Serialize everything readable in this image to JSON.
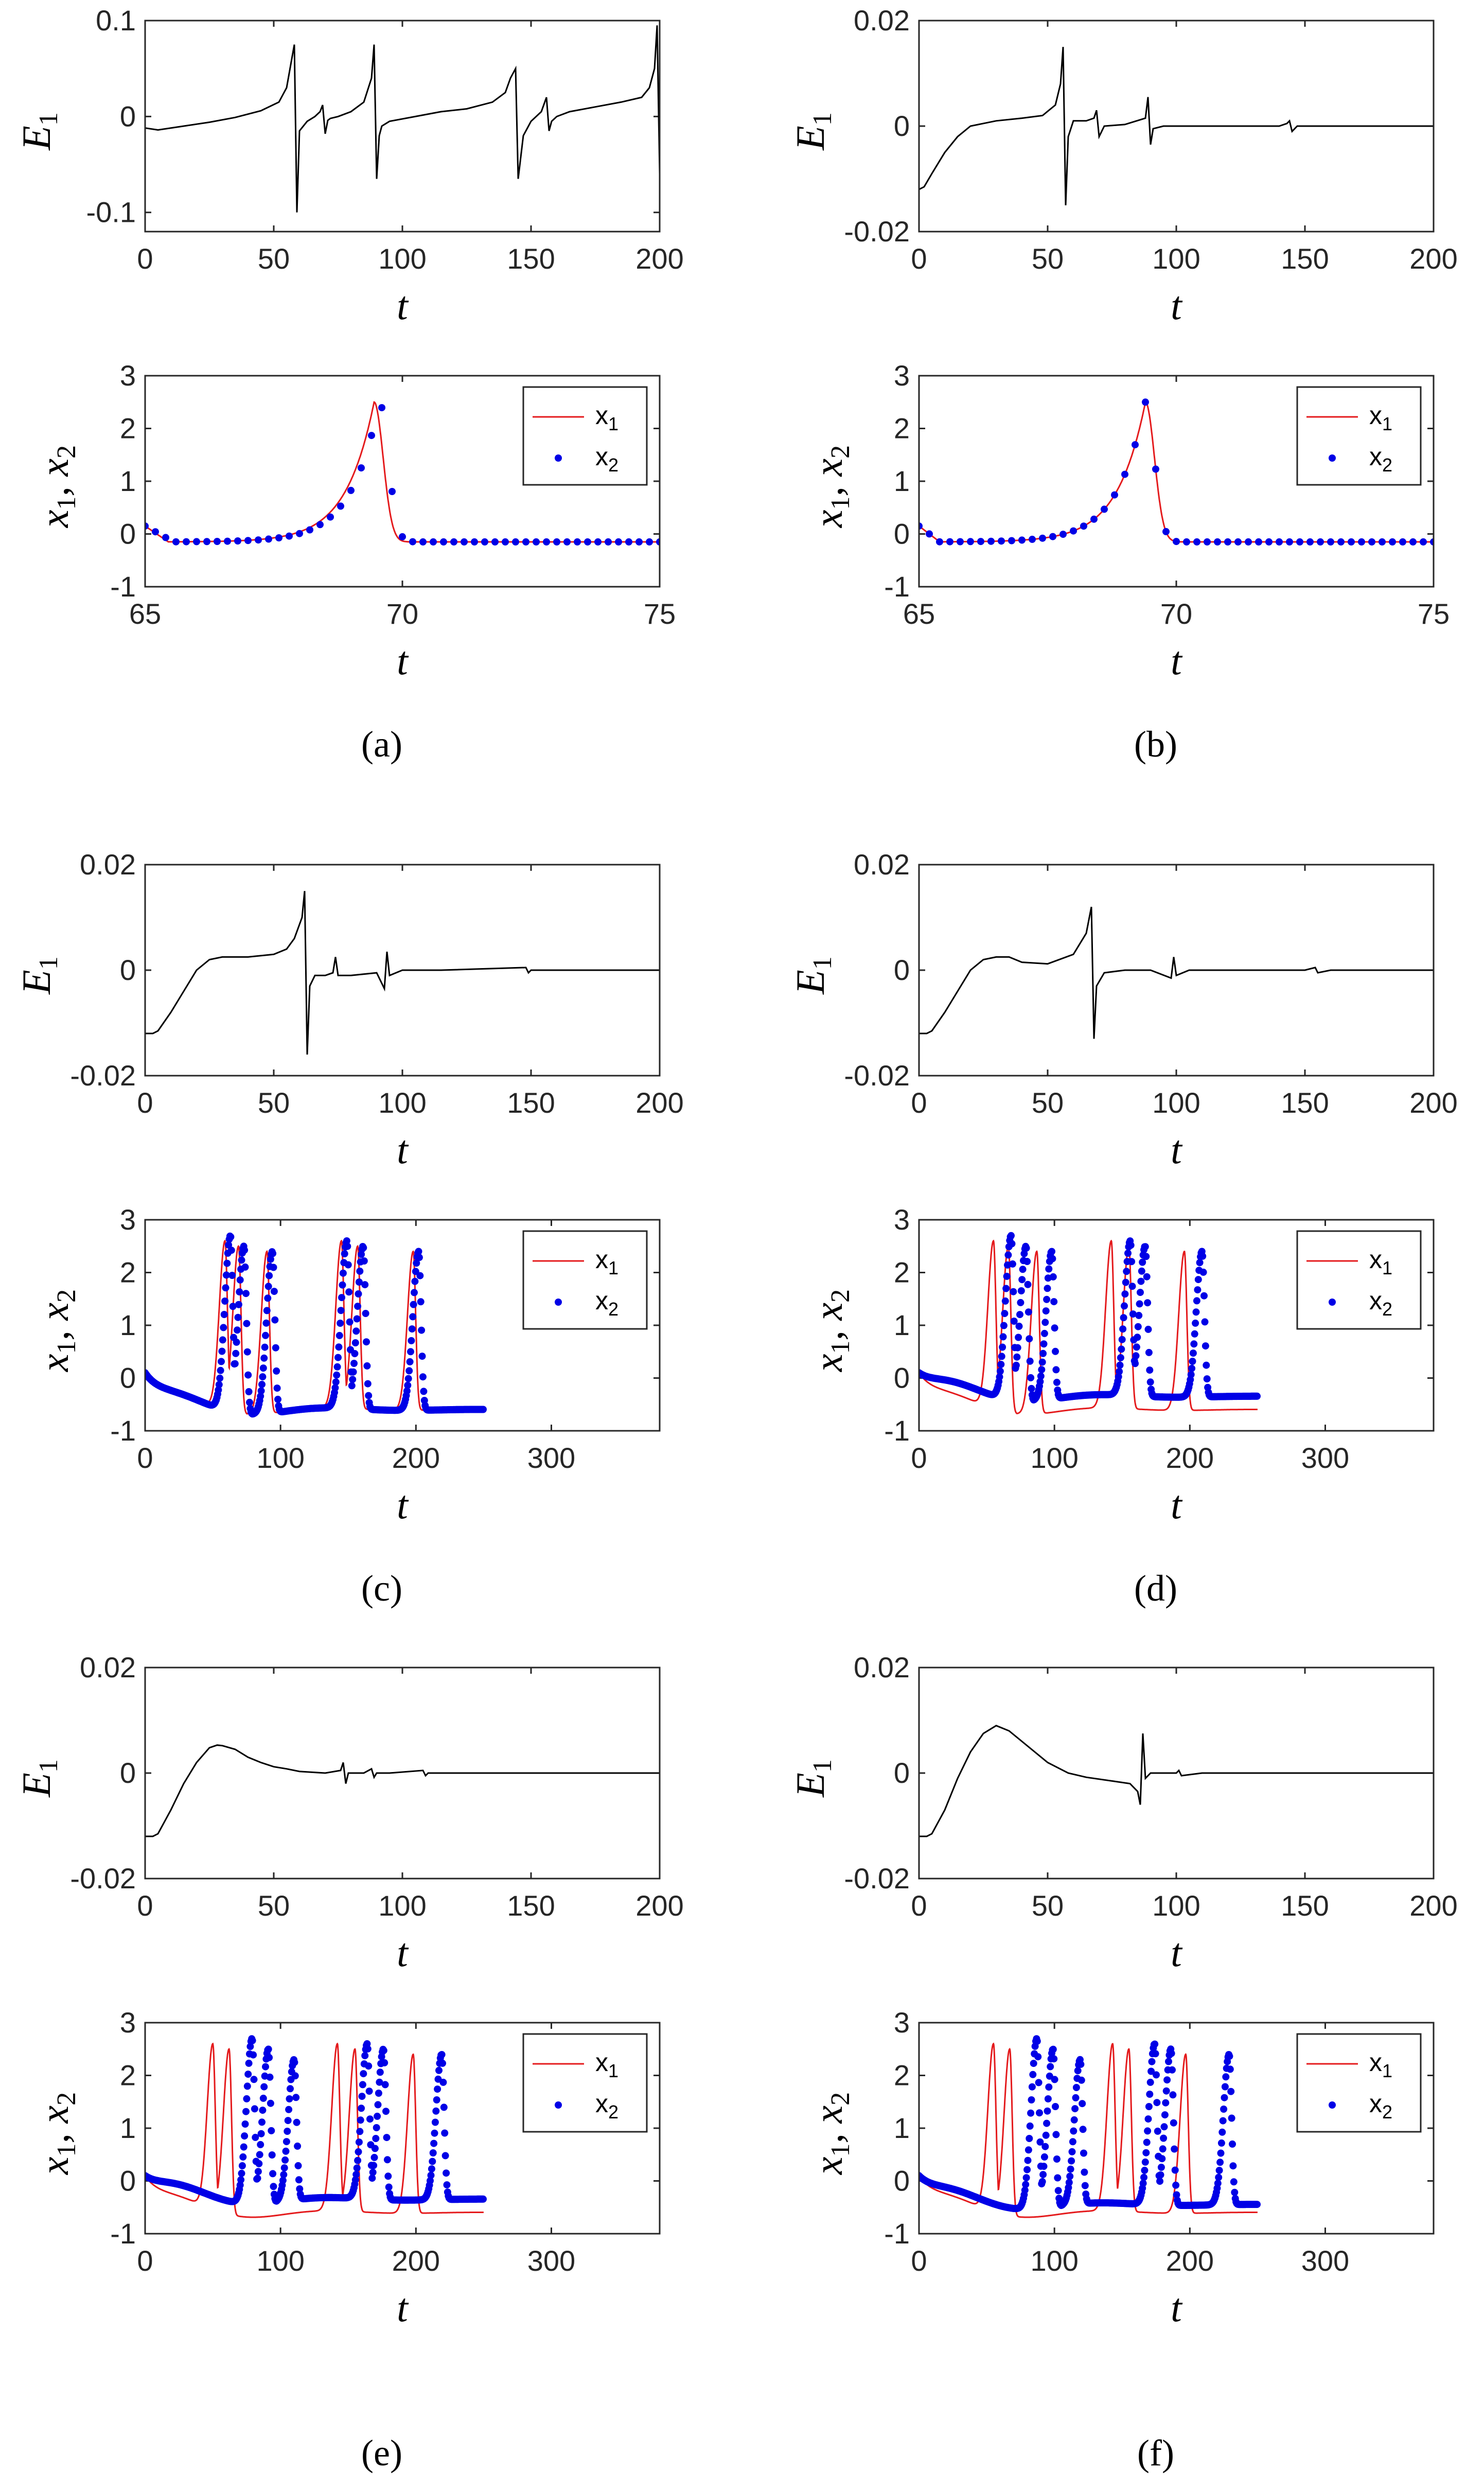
{
  "figure": {
    "panels": [
      {
        "id": "a",
        "label": "(a)"
      },
      {
        "id": "b",
        "label": "(b)"
      },
      {
        "id": "c",
        "label": "(c)"
      },
      {
        "id": "d",
        "label": "(d)"
      },
      {
        "id": "e",
        "label": "(e)"
      },
      {
        "id": "f",
        "label": "(f)"
      }
    ]
  },
  "colors": {
    "x1": "#e41a1c",
    "x2": "#0000e6",
    "error": "#000000"
  },
  "chart_data": [
    {
      "panel": "a",
      "kind": "error",
      "type": "line",
      "ylabel": "E1",
      "xlabel": "t",
      "xlim": [
        0,
        200
      ],
      "ylim": [
        -0.12,
        0.1
      ],
      "xticks": [
        "0",
        "50",
        "100",
        "150",
        "200"
      ],
      "xtick_values": [
        0,
        50,
        100,
        150,
        200
      ],
      "yticks": [
        "0.1",
        "0",
        "-0.1"
      ],
      "ytick_values": [
        0.1,
        0,
        -0.1
      ],
      "series": [
        {
          "name": "E1",
          "x": [
            0,
            5,
            15,
            25,
            35,
            45,
            52,
            55,
            57,
            58,
            59,
            60,
            63,
            66,
            68,
            69,
            70,
            71,
            72,
            75,
            80,
            85,
            88,
            89,
            90,
            91,
            92,
            95,
            105,
            115,
            125,
            135,
            140,
            142,
            144,
            145,
            147,
            150,
            154,
            156,
            157,
            158,
            160,
            165,
            175,
            185,
            193,
            196,
            198,
            199,
            200
          ],
          "y": [
            -0.012,
            -0.014,
            -0.01,
            -0.006,
            -0.001,
            0.006,
            0.015,
            0.03,
            0.06,
            0.075,
            -0.1,
            -0.015,
            -0.005,
            0,
            0.005,
            0.012,
            -0.018,
            -0.004,
            -0.002,
            0,
            0.005,
            0.015,
            0.04,
            0.075,
            -0.065,
            -0.02,
            -0.01,
            -0.005,
            0,
            0.005,
            0.008,
            0.015,
            0.025,
            0.04,
            0.05,
            -0.065,
            -0.02,
            -0.005,
            0.005,
            0.02,
            -0.015,
            -0.005,
            0,
            0.005,
            0.01,
            0.015,
            0.02,
            0.03,
            0.05,
            0.095,
            -0.06
          ]
        }
      ]
    },
    {
      "panel": "a",
      "kind": "state",
      "type": "line+scatter",
      "ylabel": "x1, x2",
      "xlabel": "t",
      "xlim": [
        65,
        75
      ],
      "ylim": [
        -1,
        3
      ],
      "xticks": [
        "65",
        "70",
        "75"
      ],
      "xtick_values": [
        65,
        70,
        75
      ],
      "yticks": [
        "3",
        "2",
        "1",
        "0",
        "-1"
      ],
      "ytick_values": [
        3,
        2,
        1,
        0,
        -1
      ],
      "legend": [
        "x1",
        "x2"
      ],
      "series": [
        {
          "name": "x1",
          "style": "line",
          "spikes": [
            69.45
          ],
          "width": 0.5,
          "peak": 2.5,
          "baseline": -0.15,
          "start": 0.15
        },
        {
          "name": "x2",
          "style": "dots",
          "spikes": [
            69.55
          ],
          "width": 0.5,
          "peak": 2.5,
          "baseline": -0.15,
          "start": 0.15
        }
      ]
    },
    {
      "panel": "b",
      "kind": "error",
      "type": "line",
      "ylabel": "E1",
      "xlabel": "t",
      "xlim": [
        0,
        200
      ],
      "ylim": [
        -0.02,
        0.02
      ],
      "xticks": [
        "0",
        "50",
        "100",
        "150",
        "200"
      ],
      "xtick_values": [
        0,
        50,
        100,
        150,
        200
      ],
      "yticks": [
        "0.02",
        "0",
        "-0.02"
      ],
      "ytick_values": [
        0.02,
        0,
        -0.02
      ],
      "series": [
        {
          "name": "E1",
          "x": [
            0,
            2,
            5,
            10,
            15,
            20,
            30,
            40,
            48,
            53,
            55,
            56,
            57,
            58,
            60,
            65,
            68,
            69,
            70,
            72,
            80,
            88,
            89,
            90,
            91,
            95,
            110,
            140,
            143,
            144,
            145,
            147,
            160,
            180,
            200
          ],
          "y": [
            -0.012,
            -0.0115,
            -0.009,
            -0.005,
            -0.002,
            0,
            0.001,
            0.0015,
            0.002,
            0.004,
            0.008,
            0.015,
            -0.015,
            -0.002,
            0.001,
            0.001,
            0.0015,
            0.003,
            -0.002,
            0,
            0.0003,
            0.0015,
            0.0055,
            -0.0035,
            -0.0005,
            0,
            0,
            0,
            0.0005,
            0.001,
            -0.001,
            0,
            0,
            0,
            0
          ]
        }
      ]
    },
    {
      "panel": "b",
      "kind": "state",
      "type": "line+scatter",
      "ylabel": "x1, x2",
      "xlabel": "t",
      "xlim": [
        65,
        75
      ],
      "ylim": [
        -1,
        3
      ],
      "xticks": [
        "65",
        "70",
        "75"
      ],
      "xtick_values": [
        65,
        70,
        75
      ],
      "yticks": [
        "3",
        "2",
        "1",
        "0",
        "-1"
      ],
      "ytick_values": [
        3,
        2,
        1,
        0,
        -1
      ],
      "legend": [
        "x1",
        "x2"
      ],
      "series": [
        {
          "name": "x1",
          "style": "line",
          "spikes": [
            69.4
          ],
          "width": 0.5,
          "peak": 2.5,
          "baseline": -0.15,
          "start": 0.15
        },
        {
          "name": "x2",
          "style": "dots",
          "spikes": [
            69.4
          ],
          "width": 0.5,
          "peak": 2.5,
          "baseline": -0.15,
          "start": 0.15
        }
      ]
    },
    {
      "panel": "c",
      "kind": "error",
      "type": "line",
      "ylabel": "E1",
      "xlabel": "t",
      "xlim": [
        0,
        200
      ],
      "ylim": [
        -0.02,
        0.02
      ],
      "xticks": [
        "0",
        "50",
        "100",
        "150",
        "200"
      ],
      "xtick_values": [
        0,
        50,
        100,
        150,
        200
      ],
      "yticks": [
        "0.02",
        "0",
        "-0.02"
      ],
      "ytick_values": [
        0.02,
        0,
        -0.02
      ],
      "series": [
        {
          "name": "E1",
          "x": [
            0,
            3,
            5,
            10,
            15,
            20,
            25,
            30,
            40,
            50,
            55,
            58,
            61,
            62,
            63,
            64,
            66,
            70,
            73,
            74,
            75,
            80,
            90,
            93,
            94,
            95,
            100,
            115,
            148,
            149,
            150,
            160,
            200
          ],
          "y": [
            -0.012,
            -0.012,
            -0.0115,
            -0.008,
            -0.004,
            0,
            0.002,
            0.0025,
            0.0025,
            0.003,
            0.004,
            0.006,
            0.01,
            0.015,
            -0.016,
            -0.003,
            -0.001,
            -0.001,
            -0.0005,
            0.0025,
            -0.001,
            -0.001,
            -0.0005,
            -0.0035,
            0.0035,
            -0.001,
            0,
            0,
            0.0005,
            -0.0005,
            0,
            0,
            0
          ]
        }
      ]
    },
    {
      "panel": "c",
      "kind": "state",
      "type": "line+scatter",
      "ylabel": "x1, x2",
      "xlabel": "t",
      "xlim": [
        0,
        380
      ],
      "ylim": [
        -1,
        3
      ],
      "xticks": [
        "0",
        "100",
        "200",
        "300"
      ],
      "xtick_values": [
        0,
        100,
        200,
        300
      ],
      "yticks": [
        "3",
        "2",
        "1",
        "0",
        "-1"
      ],
      "ytick_values": [
        3,
        2,
        1,
        0,
        -1
      ],
      "legend": [
        "x1",
        "x2"
      ],
      "series": [
        {
          "name": "x1",
          "style": "line",
          "t_end": 250,
          "spikes": [
            59,
            69,
            90,
            145,
            157,
            198
          ],
          "peaks": [
            2.6,
            2.5,
            2.4,
            2.6,
            2.5,
            2.4
          ],
          "width": 3,
          "baseline": -0.6,
          "start": 0.1
        },
        {
          "name": "x2",
          "style": "dots",
          "t_end": 250,
          "spikes": [
            63,
            73,
            94,
            149,
            161,
            202
          ],
          "peaks": [
            2.7,
            2.5,
            2.4,
            2.6,
            2.5,
            2.4
          ],
          "width": 3,
          "baseline": -0.6,
          "start": 0.1
        }
      ]
    },
    {
      "panel": "d",
      "kind": "error",
      "type": "line",
      "ylabel": "E1",
      "xlabel": "t",
      "xlim": [
        0,
        200
      ],
      "ylim": [
        -0.02,
        0.02
      ],
      "xticks": [
        "0",
        "50",
        "100",
        "150",
        "200"
      ],
      "xtick_values": [
        0,
        50,
        100,
        150,
        200
      ],
      "yticks": [
        "0.02",
        "0",
        "-0.02"
      ],
      "ytick_values": [
        0.02,
        0,
        -0.02
      ],
      "series": [
        {
          "name": "E1",
          "x": [
            0,
            3,
            5,
            10,
            15,
            20,
            25,
            30,
            35,
            40,
            50,
            60,
            65,
            67,
            68,
            69,
            72,
            80,
            90,
            98,
            99,
            100,
            105,
            150,
            154,
            155,
            160,
            200
          ],
          "y": [
            -0.012,
            -0.012,
            -0.0115,
            -0.008,
            -0.004,
            0,
            0.002,
            0.0025,
            0.0025,
            0.0015,
            0.0012,
            0.003,
            0.007,
            0.012,
            -0.013,
            -0.003,
            -0.0005,
            0,
            0,
            -0.0015,
            0.0025,
            -0.001,
            0,
            0,
            0.0005,
            -0.0005,
            0,
            0
          ]
        }
      ]
    },
    {
      "panel": "d",
      "kind": "state",
      "type": "line+scatter",
      "ylabel": "x1, x2",
      "xlabel": "t",
      "xlim": [
        0,
        380
      ],
      "ylim": [
        -1,
        3
      ],
      "xticks": [
        "0",
        "100",
        "200",
        "300"
      ],
      "xtick_values": [
        0,
        100,
        200,
        300
      ],
      "yticks": [
        "3",
        "2",
        "1",
        "0",
        "-1"
      ],
      "ytick_values": [
        3,
        2,
        1,
        0,
        -1
      ],
      "legend": [
        "x1",
        "x2"
      ],
      "series": [
        {
          "name": "x1",
          "style": "line",
          "t_end": 250,
          "spikes": [
            55,
            66,
            87,
            142,
            155,
            196
          ],
          "peaks": [
            2.6,
            2.5,
            2.4,
            2.6,
            2.5,
            2.4
          ],
          "width": 3,
          "baseline": -0.6,
          "start": 0.1
        },
        {
          "name": "x2",
          "style": "dots",
          "t_end": 250,
          "spikes": [
            68,
            79,
            98,
            156,
            167,
            209
          ],
          "peaks": [
            2.7,
            2.5,
            2.4,
            2.6,
            2.5,
            2.4
          ],
          "width": 3,
          "baseline": -0.35,
          "start": 0.1
        }
      ]
    },
    {
      "panel": "e",
      "kind": "error",
      "type": "line",
      "ylabel": "E1",
      "xlabel": "t",
      "xlim": [
        0,
        200
      ],
      "ylim": [
        -0.02,
        0.02
      ],
      "xticks": [
        "0",
        "50",
        "100",
        "150",
        "200"
      ],
      "xtick_values": [
        0,
        50,
        100,
        150,
        200
      ],
      "yticks": [
        "0.02",
        "0",
        "-0.02"
      ],
      "ytick_values": [
        0.02,
        0,
        -0.02
      ],
      "series": [
        {
          "name": "E1",
          "x": [
            0,
            3,
            5,
            10,
            15,
            20,
            25,
            28,
            30,
            35,
            40,
            45,
            50,
            55,
            60,
            70,
            76,
            77,
            78,
            79,
            85,
            88,
            89,
            90,
            95,
            108,
            109,
            110,
            120,
            200
          ],
          "y": [
            -0.012,
            -0.012,
            -0.0115,
            -0.007,
            -0.002,
            0.002,
            0.0048,
            0.0053,
            0.0052,
            0.0045,
            0.003,
            0.002,
            0.0012,
            0.0008,
            0.0003,
            0,
            0.0005,
            0.002,
            -0.002,
            0,
            0,
            0.0008,
            -0.0008,
            0,
            0,
            0.0005,
            -0.0005,
            0,
            0,
            0
          ]
        }
      ]
    },
    {
      "panel": "e",
      "kind": "state",
      "type": "line+scatter",
      "ylabel": "x1, x2",
      "xlabel": "t",
      "xlim": [
        0,
        380
      ],
      "ylim": [
        -1,
        3
      ],
      "xticks": [
        "0",
        "100",
        "200",
        "300"
      ],
      "xtick_values": [
        0,
        100,
        200,
        300
      ],
      "yticks": [
        "3",
        "2",
        "1",
        "0",
        "-1"
      ],
      "ytick_values": [
        3,
        2,
        1,
        0,
        -1
      ],
      "legend": [
        "x1",
        "x2"
      ],
      "series": [
        {
          "name": "x1",
          "style": "line",
          "t_end": 250,
          "spikes": [
            50,
            62,
            142,
            155,
            198
          ],
          "peaks": [
            2.6,
            2.5,
            2.6,
            2.5,
            2.4
          ],
          "width": 3,
          "baseline": -0.6,
          "start": 0.1
        },
        {
          "name": "x2",
          "style": "dots",
          "t_end": 250,
          "spikes": [
            79,
            91,
            110,
            164,
            176,
            219
          ],
          "peaks": [
            2.7,
            2.5,
            2.3,
            2.6,
            2.5,
            2.4
          ],
          "width": 3,
          "baseline": -0.35,
          "start": 0.1
        }
      ]
    },
    {
      "panel": "f",
      "kind": "error",
      "type": "line",
      "ylabel": "E1",
      "xlabel": "t",
      "xlim": [
        0,
        200
      ],
      "ylim": [
        -0.02,
        0.02
      ],
      "xticks": [
        "0",
        "50",
        "100",
        "150",
        "200"
      ],
      "xtick_values": [
        0,
        50,
        100,
        150,
        200
      ],
      "yticks": [
        "0.02",
        "0",
        "-0.02"
      ],
      "ytick_values": [
        0.02,
        0,
        -0.02
      ],
      "series": [
        {
          "name": "E1",
          "x": [
            0,
            3,
            5,
            10,
            15,
            20,
            25,
            30,
            35,
            40,
            45,
            50,
            58,
            65,
            75,
            82,
            85,
            86,
            87,
            88,
            90,
            95,
            100,
            101,
            102,
            110,
            200
          ],
          "y": [
            -0.012,
            -0.012,
            -0.0115,
            -0.007,
            -0.001,
            0.004,
            0.0075,
            0.009,
            0.008,
            0.006,
            0.004,
            0.002,
            0,
            -0.0008,
            -0.0015,
            -0.002,
            -0.0035,
            -0.006,
            0.0075,
            -0.001,
            0,
            0,
            0,
            0.0005,
            -0.0005,
            0,
            0
          ]
        }
      ]
    },
    {
      "panel": "f",
      "kind": "state",
      "type": "line+scatter",
      "ylabel": "x1, x2",
      "xlabel": "t",
      "xlim": [
        0,
        380
      ],
      "ylim": [
        -1,
        3
      ],
      "xticks": [
        "0",
        "100",
        "200",
        "300"
      ],
      "xtick_values": [
        0,
        100,
        200,
        300
      ],
      "yticks": [
        "3",
        "2",
        "1",
        "0",
        "-1"
      ],
      "ytick_values": [
        3,
        2,
        1,
        0,
        -1
      ],
      "legend": [
        "x1",
        "x2"
      ],
      "series": [
        {
          "name": "x1",
          "style": "line",
          "t_end": 250,
          "spikes": [
            55,
            67,
            143,
            155,
            197
          ],
          "peaks": [
            2.6,
            2.5,
            2.6,
            2.5,
            2.4
          ],
          "width": 3,
          "baseline": -0.6,
          "start": 0.1
        },
        {
          "name": "x2",
          "style": "dots",
          "t_end": 250,
          "spikes": [
            87,
            99,
            119,
            174,
            186,
            229
          ],
          "peaks": [
            2.7,
            2.5,
            2.3,
            2.6,
            2.5,
            2.4
          ],
          "width": 3,
          "baseline": -0.45,
          "start": 0.1
        }
      ]
    }
  ]
}
